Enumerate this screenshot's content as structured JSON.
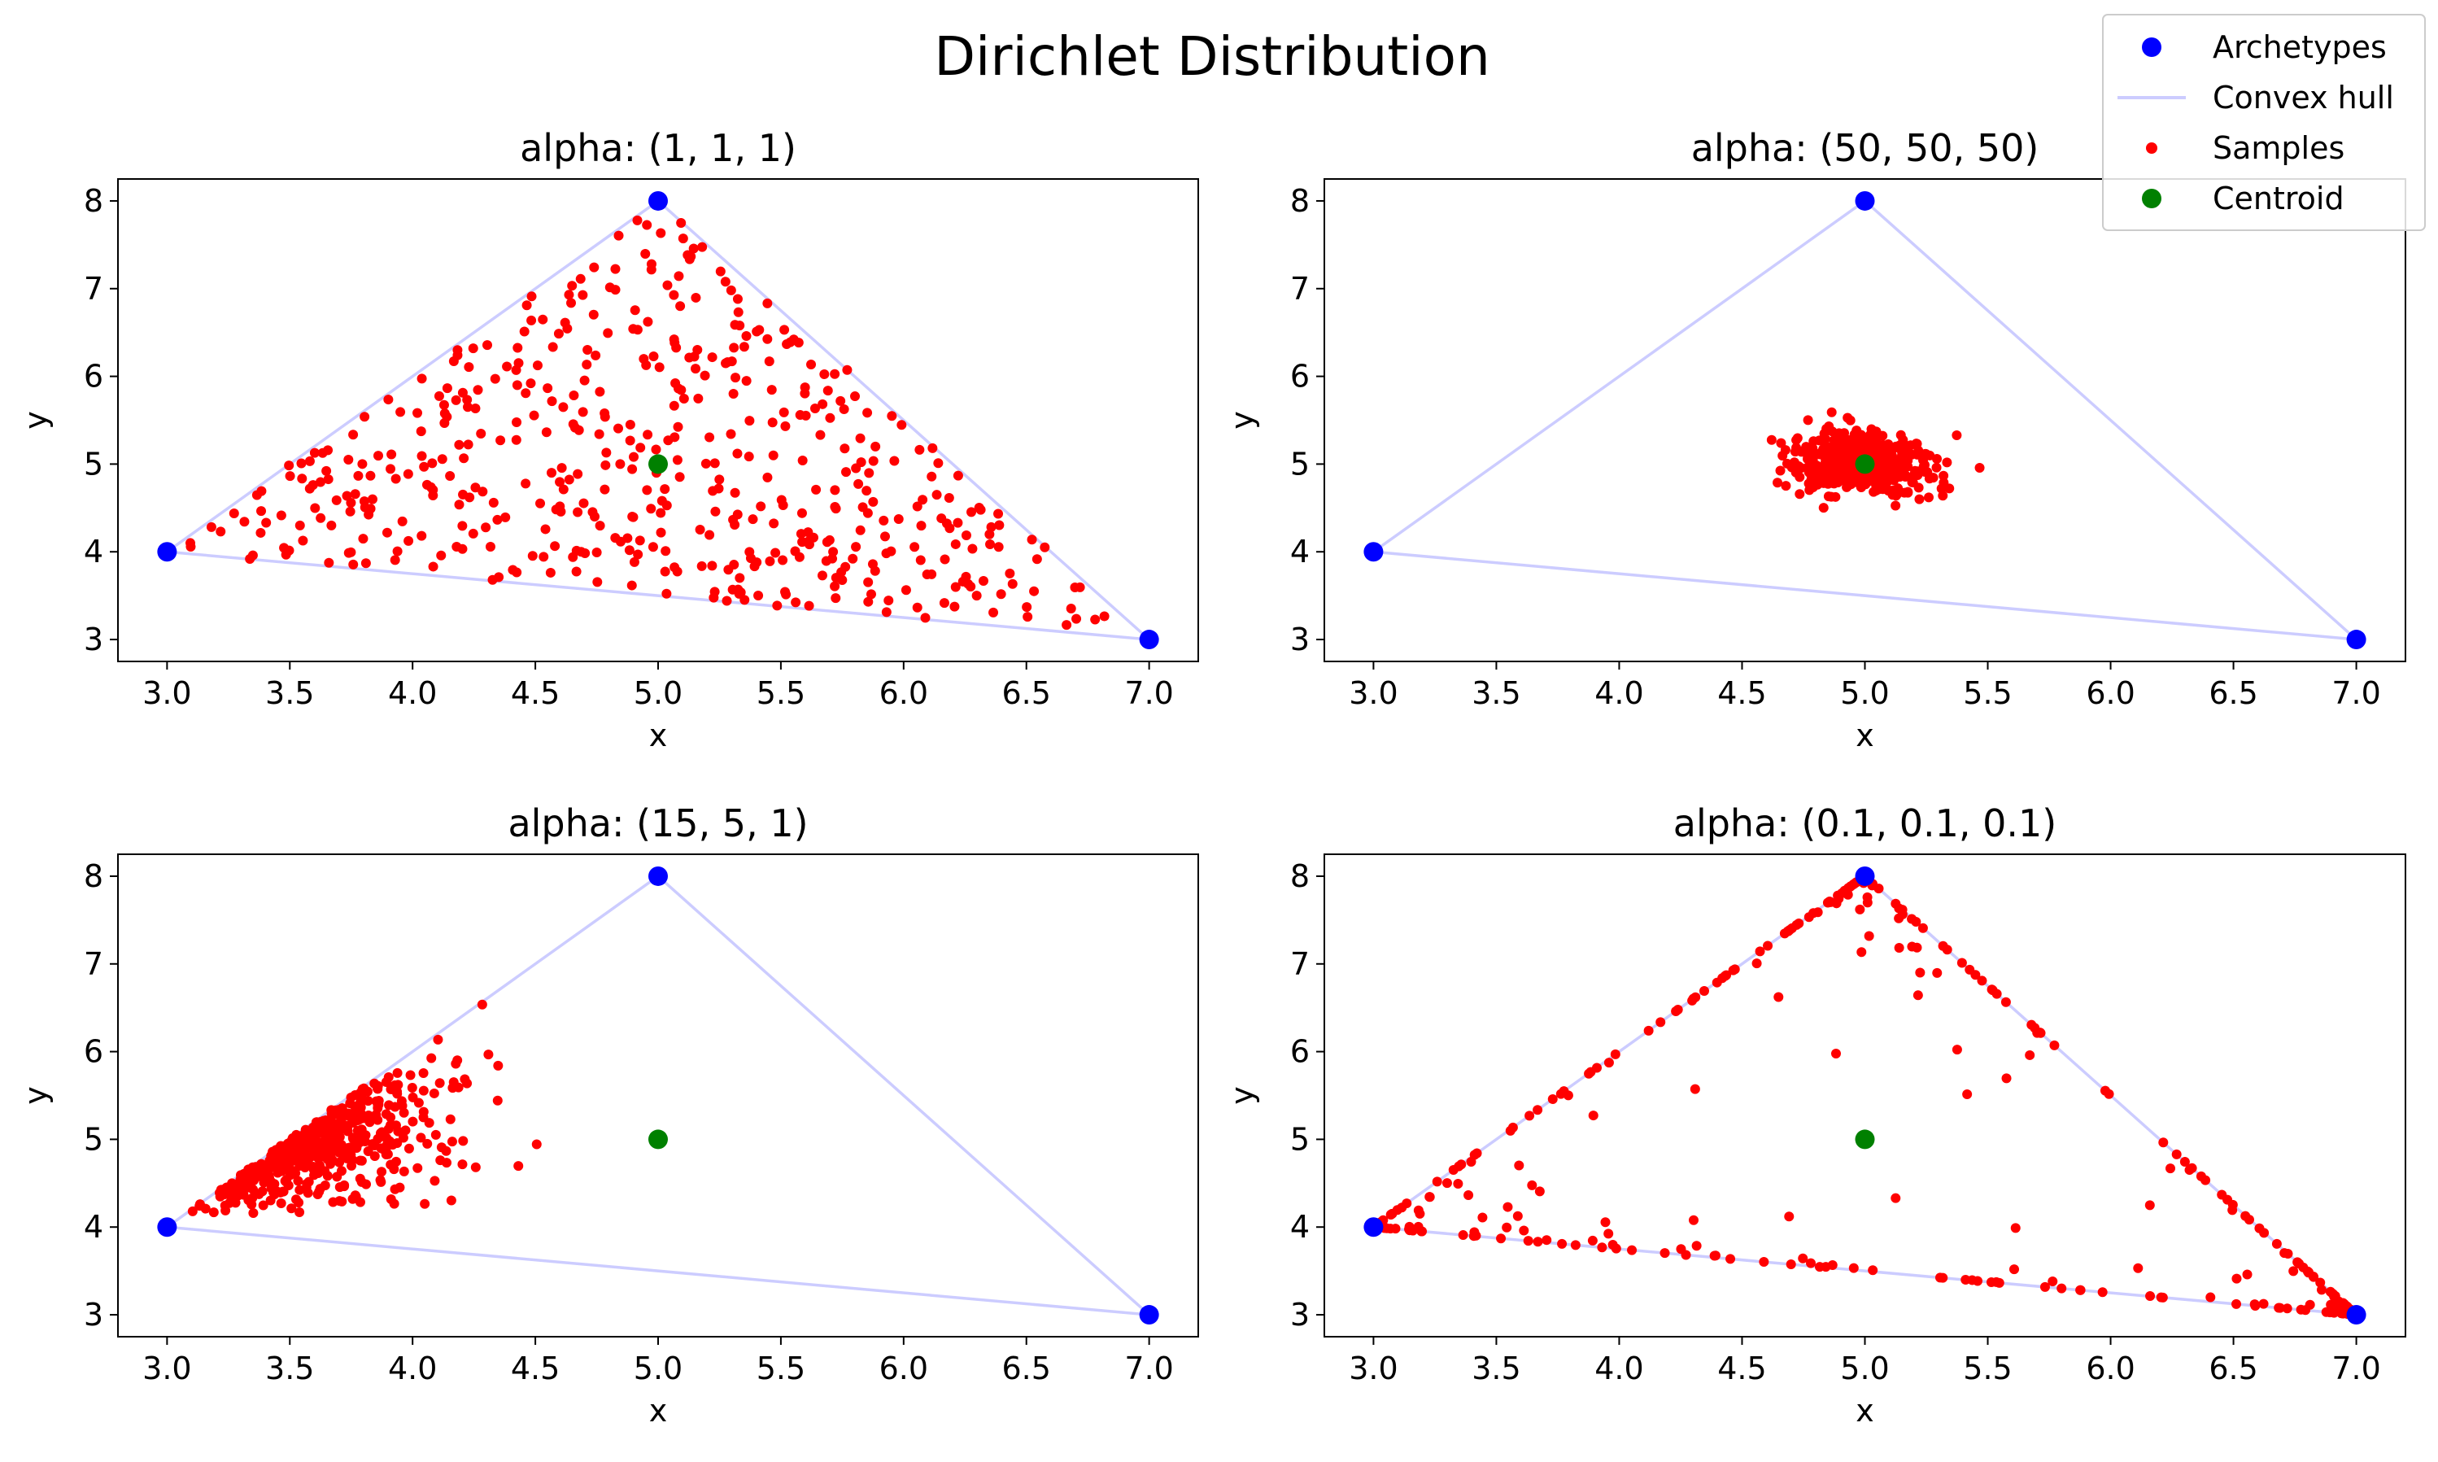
{
  "suptitle": "Dirichlet Distribution",
  "legend": {
    "placement": "top-right",
    "entries": [
      {
        "label": "Archetypes",
        "kind": "marker",
        "color": "#0000ff"
      },
      {
        "label": "Convex hull",
        "kind": "line",
        "color": "#ccccff"
      },
      {
        "label": "Samples",
        "kind": "small-marker",
        "color": "#ff0000"
      },
      {
        "label": "Centroid",
        "kind": "marker",
        "color": "#008000"
      }
    ]
  },
  "colors": {
    "archetype": "#0000ff",
    "hull": "#ccccff",
    "sample": "#ff0000",
    "centroid": "#008000"
  },
  "chart_data": [
    {
      "type": "scatter",
      "title": "alpha: (1, 1, 1)",
      "xlabel": "x",
      "ylabel": "y",
      "xlim": [
        2.8,
        7.2
      ],
      "ylim": [
        2.75,
        8.25
      ],
      "xticks": [
        "3.0",
        "3.5",
        "4.0",
        "4.5",
        "5.0",
        "5.5",
        "6.0",
        "6.5",
        "7.0"
      ],
      "yticks": [
        "3",
        "4",
        "5",
        "6",
        "7",
        "8"
      ],
      "archetypes": [
        [
          3,
          4
        ],
        [
          5,
          8
        ],
        [
          7,
          3
        ]
      ],
      "centroid": [
        5,
        5
      ],
      "alpha": [
        1,
        1,
        1
      ],
      "sample_count": 500,
      "grid": false
    },
    {
      "type": "scatter",
      "title": "alpha: (50, 50, 50)",
      "xlabel": "x",
      "ylabel": "y",
      "xlim": [
        2.8,
        7.2
      ],
      "ylim": [
        2.75,
        8.25
      ],
      "xticks": [
        "3.0",
        "3.5",
        "4.0",
        "4.5",
        "5.0",
        "5.5",
        "6.0",
        "6.5",
        "7.0"
      ],
      "yticks": [
        "3",
        "4",
        "5",
        "6",
        "7",
        "8"
      ],
      "archetypes": [
        [
          3,
          4
        ],
        [
          5,
          8
        ],
        [
          7,
          3
        ]
      ],
      "centroid": [
        5,
        5
      ],
      "alpha": [
        50,
        50,
        50
      ],
      "sample_count": 500,
      "grid": false
    },
    {
      "type": "scatter",
      "title": "alpha: (15, 5, 1)",
      "xlabel": "x",
      "ylabel": "y",
      "xlim": [
        2.8,
        7.2
      ],
      "ylim": [
        2.75,
        8.25
      ],
      "xticks": [
        "3.0",
        "3.5",
        "4.0",
        "4.5",
        "5.0",
        "5.5",
        "6.0",
        "6.5",
        "7.0"
      ],
      "yticks": [
        "3",
        "4",
        "5",
        "6",
        "7",
        "8"
      ],
      "archetypes": [
        [
          3,
          4
        ],
        [
          5,
          8
        ],
        [
          7,
          3
        ]
      ],
      "centroid": [
        5,
        5
      ],
      "alpha": [
        15,
        5,
        1
      ],
      "sample_count": 500,
      "grid": false
    },
    {
      "type": "scatter",
      "title": "alpha: (0.1, 0.1, 0.1)",
      "xlabel": "x",
      "ylabel": "y",
      "xlim": [
        2.8,
        7.2
      ],
      "ylim": [
        2.75,
        8.25
      ],
      "xticks": [
        "3.0",
        "3.5",
        "4.0",
        "4.5",
        "5.0",
        "5.5",
        "6.0",
        "6.5",
        "7.0"
      ],
      "yticks": [
        "3",
        "4",
        "5",
        "6",
        "7",
        "8"
      ],
      "archetypes": [
        [
          3,
          4
        ],
        [
          5,
          8
        ],
        [
          7,
          3
        ]
      ],
      "centroid": [
        5,
        5
      ],
      "alpha": [
        0.1,
        0.1,
        0.1
      ],
      "sample_count": 500,
      "grid": false
    }
  ]
}
